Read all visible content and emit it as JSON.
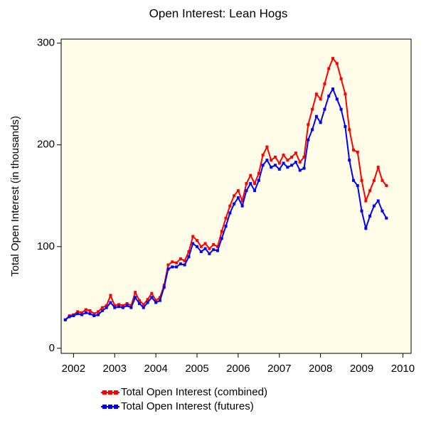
{
  "chart_data": {
    "type": "line",
    "title": "Open Interest: Lean Hogs",
    "ylabel": "Total Open Interest (in thousands)",
    "x": [
      2001.8,
      2001.9,
      2002.0,
      2002.1,
      2002.2,
      2002.3,
      2002.4,
      2002.5,
      2002.6,
      2002.7,
      2002.8,
      2002.9,
      2003.0,
      2003.1,
      2003.2,
      2003.3,
      2003.4,
      2003.5,
      2003.6,
      2003.7,
      2003.8,
      2003.9,
      2004.0,
      2004.1,
      2004.2,
      2004.3,
      2004.4,
      2004.5,
      2004.6,
      2004.7,
      2004.8,
      2004.9,
      2005.0,
      2005.1,
      2005.2,
      2005.3,
      2005.4,
      2005.5,
      2005.6,
      2005.7,
      2005.8,
      2005.9,
      2006.0,
      2006.1,
      2006.2,
      2006.3,
      2006.4,
      2006.5,
      2006.6,
      2006.7,
      2006.8,
      2006.9,
      2007.0,
      2007.1,
      2007.2,
      2007.3,
      2007.4,
      2007.5,
      2007.6,
      2007.7,
      2007.8,
      2007.9,
      2008.0,
      2008.1,
      2008.2,
      2008.3,
      2008.4,
      2008.5,
      2008.6,
      2008.7,
      2008.8,
      2008.9,
      2009.0,
      2009.1,
      2009.2,
      2009.3,
      2009.4,
      2009.5,
      2009.6
    ],
    "series": [
      {
        "name": "Total Open Interest (combined)",
        "color": "#ff0000",
        "values": [
          28,
          32,
          33,
          36,
          35,
          38,
          37,
          34,
          36,
          40,
          42,
          52,
          42,
          43,
          42,
          44,
          42,
          55,
          47,
          43,
          48,
          54,
          47,
          50,
          62,
          82,
          85,
          84,
          88,
          86,
          95,
          110,
          106,
          100,
          103,
          98,
          102,
          100,
          115,
          128,
          140,
          150,
          155,
          145,
          162,
          170,
          162,
          172,
          190,
          198,
          185,
          188,
          182,
          190,
          185,
          188,
          192,
          183,
          188,
          220,
          235,
          250,
          245,
          260,
          275,
          285,
          280,
          265,
          250,
          215,
          195,
          193,
          165,
          145,
          155,
          165,
          178,
          165,
          160
        ]
      },
      {
        "name": "Total Open Interest (futures)",
        "color": "#0000ff",
        "values": [
          28,
          31,
          32,
          34,
          33,
          35,
          34,
          32,
          33,
          37,
          40,
          45,
          40,
          41,
          40,
          42,
          40,
          50,
          44,
          40,
          45,
          50,
          45,
          47,
          60,
          78,
          80,
          80,
          83,
          82,
          90,
          103,
          100,
          95,
          98,
          93,
          97,
          96,
          108,
          120,
          133,
          142,
          148,
          140,
          155,
          162,
          155,
          165,
          180,
          185,
          178,
          180,
          176,
          182,
          178,
          180,
          183,
          175,
          177,
          205,
          215,
          228,
          222,
          235,
          248,
          255,
          245,
          235,
          218,
          185,
          165,
          160,
          135,
          118,
          130,
          140,
          145,
          135,
          128
        ]
      }
    ],
    "xlim": [
      2001.7,
      2010.2
    ],
    "xticks": [
      2002,
      2003,
      2004,
      2005,
      2006,
      2007,
      2008,
      2009,
      2010
    ],
    "ylim": [
      -5,
      304
    ],
    "yticks": [
      0,
      100,
      200,
      300
    ]
  }
}
